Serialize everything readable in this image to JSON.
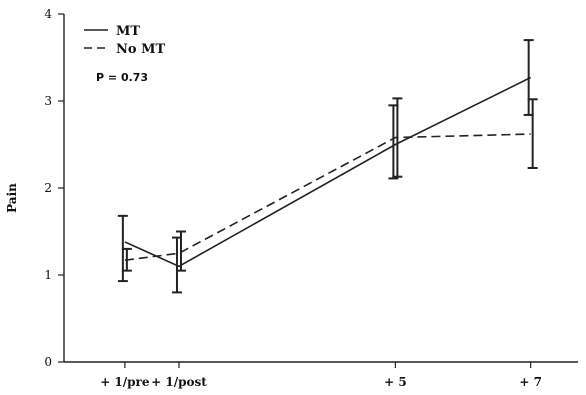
{
  "chart_data": {
    "type": "line",
    "title": "",
    "xlabel": "",
    "ylabel": "Pain",
    "categories": [
      "+ 1/pre",
      "+ 1/post",
      "+ 5",
      "+ 7"
    ],
    "x": [
      1,
      1.8,
      5,
      7
    ],
    "ylim": [
      0,
      4
    ],
    "yticks": [
      "0",
      "1",
      "2",
      "3",
      "4"
    ],
    "grid": false,
    "legend_position": "top-left",
    "annotation": "P = 0.73",
    "series": [
      {
        "name": "MT",
        "style": "solid",
        "color": "#222222",
        "values": [
          1.38,
          1.1,
          2.5,
          3.27
        ],
        "err_low": [
          0.93,
          0.8,
          2.11,
          2.84
        ],
        "err_high": [
          1.68,
          1.43,
          2.95,
          3.7
        ]
      },
      {
        "name": "No MT",
        "style": "dashed",
        "color": "#222222",
        "values": [
          1.17,
          1.25,
          2.58,
          2.62
        ],
        "err_low": [
          1.05,
          1.05,
          2.13,
          2.23
        ],
        "err_high": [
          1.3,
          1.5,
          3.03,
          3.02
        ]
      }
    ]
  }
}
